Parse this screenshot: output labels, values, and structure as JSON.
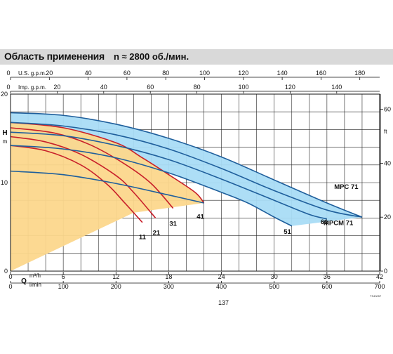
{
  "header": {
    "title": "Область применения",
    "speed": "n ≈ 2800 об./мин."
  },
  "page_number": "137",
  "corner_mark": "TS40057",
  "colors": {
    "banner": "#d9d9d9",
    "blue_fill": "#a9dcf5",
    "orange_fill": "#fcd78c",
    "blue_curve": "#1f5f9c",
    "red_curve": "#c8202a"
  },
  "chart_data": {
    "type": "line",
    "axes": {
      "x_bottom_m3h": {
        "label": "Q",
        "unit": "m³/h",
        "range": [
          0,
          42
        ],
        "ticks": [
          0,
          6,
          12,
          18,
          24,
          30,
          36,
          42
        ]
      },
      "x_bottom_lmin": {
        "unit": "l/min",
        "range": [
          0,
          700
        ],
        "ticks": [
          0,
          100,
          200,
          300,
          400,
          500,
          600,
          700
        ]
      },
      "x_top_usgpm": {
        "unit": "U.S. g.p.m.",
        "ticks": [
          0,
          20,
          40,
          60,
          80,
          100,
          120,
          140,
          160,
          180
        ]
      },
      "x_top_impgpm": {
        "unit": "Imp. g.p.m.",
        "ticks": [
          0,
          20,
          40,
          60,
          80,
          100,
          120,
          140
        ]
      },
      "y_left_m": {
        "label": "H",
        "unit": "m",
        "range": [
          0,
          20
        ],
        "ticks": [
          0,
          10,
          20
        ]
      },
      "y_right_ft": {
        "unit": "ft",
        "ticks": [
          0,
          20,
          40,
          60
        ]
      }
    },
    "grid": true,
    "regions": [
      {
        "name": "MPC 71",
        "color": "#a9dcf5",
        "upper": [
          [
            0,
            17.9
          ],
          [
            6,
            17.6
          ],
          [
            12,
            16.6
          ],
          [
            18,
            15.0
          ],
          [
            24,
            12.9
          ],
          [
            30,
            10.3
          ],
          [
            36,
            7.7
          ],
          [
            40,
            6.1
          ]
        ],
        "lower": [
          [
            0,
            14.2
          ],
          [
            6,
            13.8
          ],
          [
            12,
            12.8
          ],
          [
            18,
            11.1
          ],
          [
            24,
            8.9
          ],
          [
            27,
            7.7
          ],
          [
            30,
            6.1
          ],
          [
            32,
            5.1
          ],
          [
            40,
            6.1
          ]
        ]
      },
      {
        "name": "MPCM 71",
        "color": "#fcd78c",
        "upper": [
          [
            0,
            16.8
          ],
          [
            6,
            16.2
          ],
          [
            12,
            14.5
          ],
          [
            15,
            12.8
          ],
          [
            18,
            10.9
          ],
          [
            21,
            8.9
          ],
          [
            22,
            7.7
          ]
        ],
        "lower": [
          [
            0,
            0
          ],
          [
            14,
            6.6
          ],
          [
            22,
            7.7
          ]
        ]
      }
    ],
    "series": [
      {
        "name": "11",
        "group": "red",
        "points": [
          [
            0,
            14.2
          ],
          [
            4,
            13.6
          ],
          [
            8,
            12.0
          ],
          [
            11,
            9.8
          ],
          [
            13,
            7.7
          ],
          [
            15,
            5.5
          ]
        ]
      },
      {
        "name": "21",
        "group": "red",
        "points": [
          [
            0,
            15.2
          ],
          [
            4,
            14.6
          ],
          [
            8,
            13.2
          ],
          [
            12,
            10.8
          ],
          [
            14,
            8.9
          ],
          [
            16.5,
            6.0
          ]
        ]
      },
      {
        "name": "31",
        "group": "red",
        "points": [
          [
            0,
            16.2
          ],
          [
            5,
            15.6
          ],
          [
            9,
            14.3
          ],
          [
            13,
            12.1
          ],
          [
            16,
            9.9
          ],
          [
            18.5,
            7.1
          ]
        ]
      },
      {
        "name": "41",
        "group": "red",
        "points": [
          [
            0,
            16.8
          ],
          [
            6,
            16.2
          ],
          [
            12,
            14.5
          ],
          [
            15,
            12.8
          ],
          [
            18,
            10.9
          ],
          [
            21,
            8.9
          ],
          [
            22,
            7.7
          ]
        ]
      },
      {
        "name": "51",
        "group": "blue",
        "points": [
          [
            0,
            14.2
          ],
          [
            6,
            13.8
          ],
          [
            12,
            12.8
          ],
          [
            18,
            11.1
          ],
          [
            24,
            8.9
          ],
          [
            27,
            7.7
          ],
          [
            30,
            6.1
          ],
          [
            32,
            5.1
          ]
        ]
      },
      {
        "name": "61",
        "group": "blue",
        "points": [
          [
            0,
            15.7
          ],
          [
            6,
            15.3
          ],
          [
            12,
            14.2
          ],
          [
            18,
            12.6
          ],
          [
            24,
            10.4
          ],
          [
            30,
            8.0
          ],
          [
            34,
            6.4
          ],
          [
            36,
            5.9
          ]
        ]
      },
      {
        "name": "MPC 71",
        "group": "blue",
        "points": [
          [
            0,
            17.9
          ],
          [
            6,
            17.6
          ],
          [
            12,
            16.6
          ],
          [
            18,
            15.0
          ],
          [
            24,
            12.9
          ],
          [
            30,
            10.3
          ],
          [
            36,
            7.7
          ],
          [
            40,
            6.1
          ]
        ]
      },
      {
        "name": "MPCM 71",
        "group": "blue",
        "points": [
          [
            0,
            16.8
          ],
          [
            6,
            16.4
          ],
          [
            12,
            15.4
          ],
          [
            18,
            13.8
          ],
          [
            24,
            11.6
          ],
          [
            30,
            9.1
          ],
          [
            36,
            6.9
          ],
          [
            40,
            6.1
          ]
        ]
      },
      {
        "name": "",
        "group": "blue",
        "points": [
          [
            0,
            11.3
          ],
          [
            6,
            10.9
          ],
          [
            12,
            9.9
          ],
          [
            18,
            8.6
          ],
          [
            22,
            7.7
          ]
        ]
      }
    ],
    "labels": [
      {
        "text": "11",
        "x": 15,
        "y": 3.6
      },
      {
        "text": "21",
        "x": 16.6,
        "y": 4.1
      },
      {
        "text": "31",
        "x": 18.5,
        "y": 5.1
      },
      {
        "text": "41",
        "x": 21.6,
        "y": 5.9
      },
      {
        "text": "51",
        "x": 31.5,
        "y": 4.2
      },
      {
        "text": "61",
        "x": 35.7,
        "y": 5.3
      },
      {
        "text": "MPC 71",
        "x": 38.2,
        "y": 9.3
      },
      {
        "text": "MPCM 71",
        "x": 37.3,
        "y": 5.2
      }
    ]
  }
}
